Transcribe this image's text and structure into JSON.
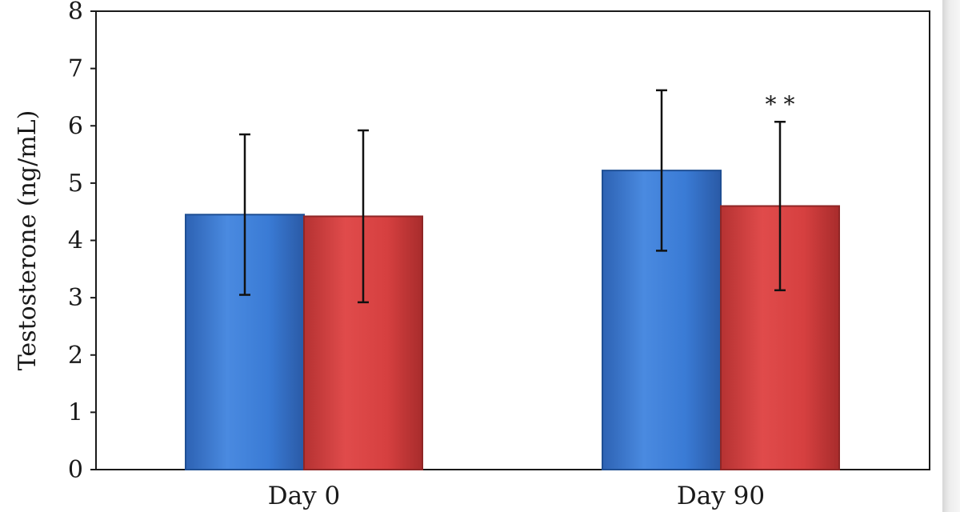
{
  "chart_data": {
    "type": "bar",
    "title": "",
    "xlabel": "",
    "ylabel": "Testosterone (ng/mL)",
    "ylim": [
      0,
      8
    ],
    "yticks": [
      0,
      1,
      2,
      3,
      4,
      5,
      6,
      7,
      8
    ],
    "categories": [
      "Day 0",
      "Day 90"
    ],
    "series": [
      {
        "color": "#3a7bd5",
        "values": [
          4.45,
          5.22
        ],
        "error": [
          1.4,
          1.4
        ]
      },
      {
        "color": "#d64040",
        "values": [
          4.42,
          4.6
        ],
        "error": [
          1.5,
          1.47
        ]
      }
    ],
    "annotations": [
      {
        "category_index": 1,
        "series_index": 1,
        "text": "* *"
      }
    ],
    "grid": false,
    "legend": "none"
  }
}
